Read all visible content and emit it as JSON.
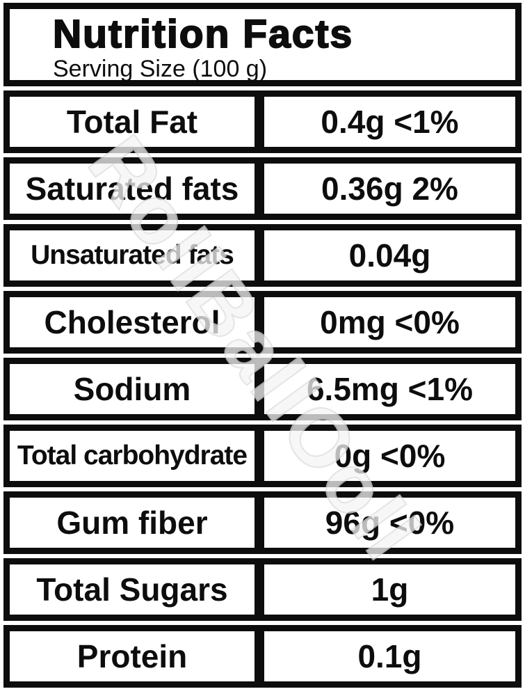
{
  "header": {
    "title": "Nutrition Facts",
    "serving_size": "Serving Size (100 g)"
  },
  "rows": [
    {
      "label": "Total Fat",
      "value": "0.4g <1%"
    },
    {
      "label": "Saturated fats",
      "value": "0.36g 2%"
    },
    {
      "label": "Unsaturated fats",
      "value": "0.04g"
    },
    {
      "label": "Cholesterol",
      "value": "0mg <0%"
    },
    {
      "label": "Sodium",
      "value": "6.5mg <1%"
    },
    {
      "label": "Total carbohydrate",
      "value": "0g <0%"
    },
    {
      "label": "Gum fiber",
      "value": "96g <0%"
    },
    {
      "label": "Total Sugars",
      "value": "1g"
    },
    {
      "label": "Protein",
      "value": "0.1g"
    }
  ],
  "watermark": {
    "text": "RollBallOoll"
  },
  "colors": {
    "ink": "#0d0d0d",
    "background": "#ffffff",
    "watermark_outline": "#dcdcdc"
  }
}
